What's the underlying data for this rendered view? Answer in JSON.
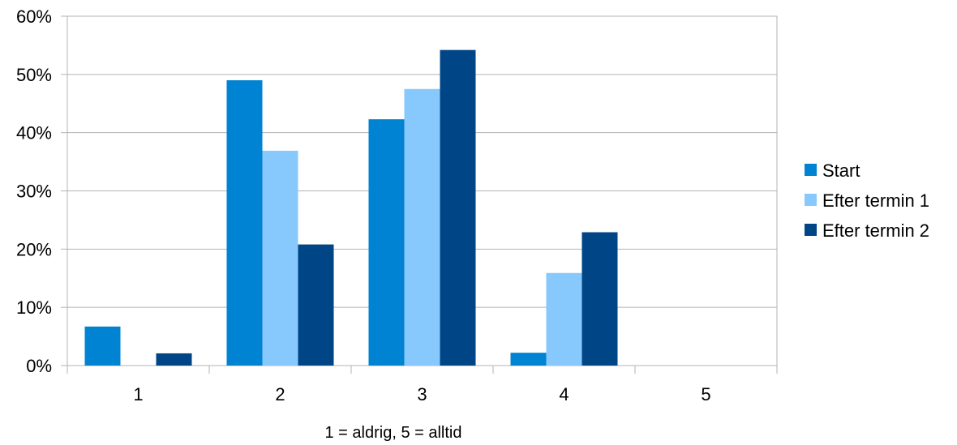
{
  "chart_data": {
    "type": "bar",
    "categories": [
      "1",
      "2",
      "3",
      "4",
      "5"
    ],
    "series": [
      {
        "name": "Start",
        "color": "#0083D2",
        "values": [
          6.7,
          49.0,
          42.3,
          2.2,
          0
        ]
      },
      {
        "name": "Efter termin 1",
        "color": "#87C9FC",
        "values": [
          0,
          36.9,
          47.5,
          15.9,
          0
        ]
      },
      {
        "name": "Efter termin 2",
        "color": "#004586",
        "values": [
          2.1,
          20.8,
          54.2,
          22.9,
          0
        ]
      }
    ],
    "xlabel": "1 = aldrig, 5 = alltid",
    "ylabel": "",
    "ylim": [
      0,
      60
    ],
    "yticks": [
      "0%",
      "10%",
      "20%",
      "30%",
      "40%",
      "50%",
      "60%"
    ],
    "grid": true,
    "legend_position": "right"
  }
}
